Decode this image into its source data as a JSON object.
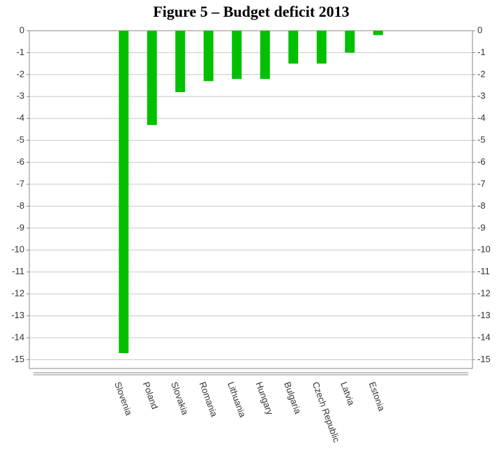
{
  "chart_data": {
    "type": "bar",
    "title": "Figure 5 – Budget deficit 2013",
    "categories": [
      "Slovenia",
      "Poland",
      "Slovakia",
      "Romania",
      "Lithuania",
      "Hungary",
      "Bulgaria",
      "Czech Republic",
      "Latvia",
      "Estonia"
    ],
    "values": [
      -14.7,
      -4.3,
      -2.8,
      -2.3,
      -2.2,
      -2.2,
      -1.5,
      -1.5,
      -1.0,
      -0.2
    ],
    "color": "#00c000",
    "ylim": [
      -15.4,
      0
    ],
    "yticks": [
      0,
      -1,
      -2,
      -3,
      -4,
      -5,
      -6,
      -7,
      -8,
      -9,
      -10,
      -11,
      -12,
      -13,
      -14,
      -15
    ],
    "y2lim": [
      -15.4,
      0
    ],
    "y2ticks": [
      0,
      -1,
      -2,
      -3,
      -4,
      -5,
      -6,
      -7,
      -8,
      -9,
      -10,
      -11,
      -12,
      -13,
      -14,
      -15
    ],
    "grid": true
  }
}
